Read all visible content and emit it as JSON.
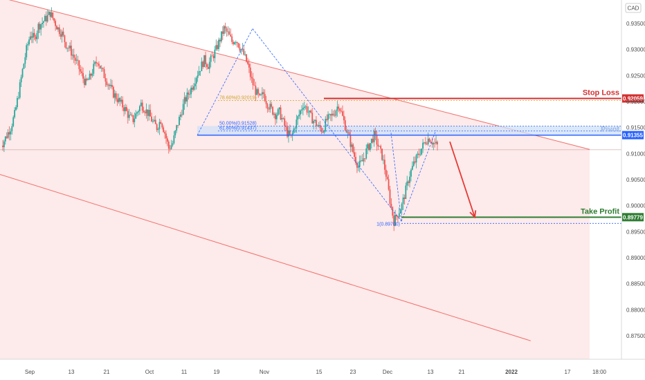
{
  "chart_data": {
    "type": "candlestick",
    "currency": "CAD",
    "y_ticks": [
      "0.93500",
      "0.93000",
      "0.92500",
      "0.92000",
      "0.91500",
      "0.91000",
      "0.90500",
      "0.90000",
      "0.89500",
      "0.89000",
      "0.88500",
      "0.88000",
      "0.87500"
    ],
    "y_tick_values": [
      0.935,
      0.93,
      0.925,
      0.92,
      0.915,
      0.91,
      0.905,
      0.9,
      0.895,
      0.89,
      0.885,
      0.88,
      0.875
    ],
    "x_ticks": [
      "Sep",
      "13",
      "21",
      "Oct",
      "11",
      "19",
      "Nov",
      "15",
      "23",
      "Dec",
      "13",
      "21",
      "2022",
      "17",
      "18:00"
    ],
    "ylim": [
      0.8705,
      0.9395
    ],
    "grid": false,
    "price_path": [
      0.912,
      0.9135,
      0.915,
      0.9175,
      0.9215,
      0.926,
      0.93,
      0.933,
      0.932,
      0.9345,
      0.9352,
      0.936,
      0.937,
      0.9355,
      0.934,
      0.933,
      0.931,
      0.93,
      0.9285,
      0.927,
      0.925,
      0.9235,
      0.9245,
      0.9265,
      0.928,
      0.926,
      0.9245,
      0.923,
      0.9215,
      0.9205,
      0.9195,
      0.9185,
      0.917,
      0.9165,
      0.918,
      0.9195,
      0.9185,
      0.9175,
      0.916,
      0.915,
      0.9165,
      0.914,
      0.911,
      0.912,
      0.915,
      0.9175,
      0.92,
      0.9215,
      0.923,
      0.925,
      0.9265,
      0.928,
      0.927,
      0.9285,
      0.93,
      0.932,
      0.934,
      0.933,
      0.9315,
      0.932,
      0.9305,
      0.929,
      0.927,
      0.924,
      0.922,
      0.9205,
      0.9215,
      0.9195,
      0.9185,
      0.9175,
      0.918,
      0.916,
      0.914,
      0.913,
      0.9155,
      0.9175,
      0.9195,
      0.9185,
      0.917,
      0.916,
      0.915,
      0.9145,
      0.9165,
      0.917,
      0.918,
      0.9195,
      0.917,
      0.9145,
      0.912,
      0.9095,
      0.9075,
      0.9085,
      0.9105,
      0.912,
      0.9135,
      0.9115,
      0.9095,
      0.906,
      0.901,
      0.897,
      0.8985,
      0.9,
      0.903,
      0.906,
      0.908,
      0.9095,
      0.911,
      0.9125,
      0.913,
      0.912,
      0.9115
    ],
    "levels": [
      {
        "name": "Stop Loss",
        "value": 0.92059,
        "tag": "0.92059",
        "color": "#d32f2f"
      },
      {
        "name": "Pivot",
        "value": 0.91355,
        "tag": "0.91355",
        "color": "#2962ff"
      },
      {
        "name": "Take Profit",
        "value": 0.89779,
        "tag": "0.89779",
        "color": "#2e7d32"
      }
    ],
    "fib_labels": [
      {
        "text": "78.60%(0.92019)",
        "value": 0.92019,
        "color": "#c9a227"
      },
      {
        "text": "50.00%(0.91528)",
        "value": 0.91528,
        "color": "#2962ff"
      },
      {
        "text": "61.80%(0.91437)",
        "value": 0.91437,
        "color": "#2962ff"
      },
      {
        "text": "1(0.89700)",
        "value": 0.897,
        "color": "#2962ff"
      }
    ],
    "channel": {
      "upper_start": 0.94,
      "upper_end": 0.9108,
      "lower_start": 0.906,
      "lower_end": 0.8705
    },
    "horizontal_reference": 0.911,
    "colors": {
      "up": "#26a69a",
      "down": "#ef5350",
      "channel_fill": "#fdeaea",
      "channel_line": "#f0706b",
      "arrow": "#e53935",
      "pivot_zone": "#cfe0f7"
    }
  }
}
